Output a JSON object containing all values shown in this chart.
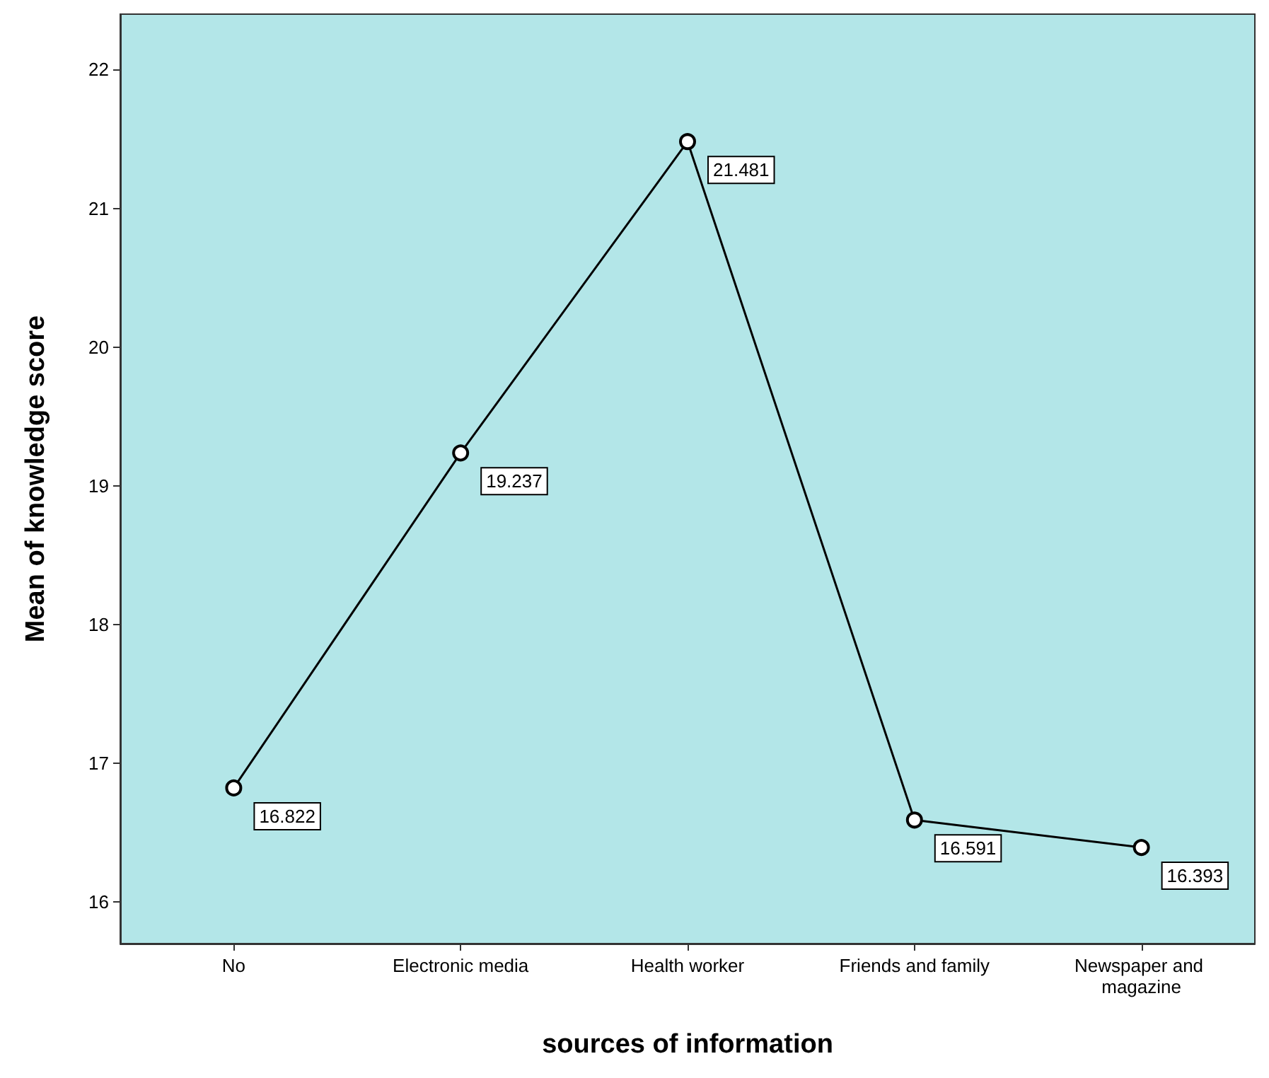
{
  "chart_data": {
    "type": "line",
    "xlabel": "sources of information",
    "ylabel": "Mean of knowledge score",
    "categories": [
      "No",
      "Electronic media",
      "Health worker",
      "Friends and family",
      "Newspaper and magazine"
    ],
    "series": [
      {
        "color": "#000000",
        "values": [
          16.822,
          19.237,
          21.481,
          16.591,
          16.393
        ]
      }
    ],
    "ylim": [
      15.7,
      22.4
    ],
    "yticks": [
      16,
      17,
      18,
      19,
      20,
      21,
      22
    ],
    "grid": false,
    "data_labels": true,
    "marker": "circle",
    "line_style": "solid"
  }
}
